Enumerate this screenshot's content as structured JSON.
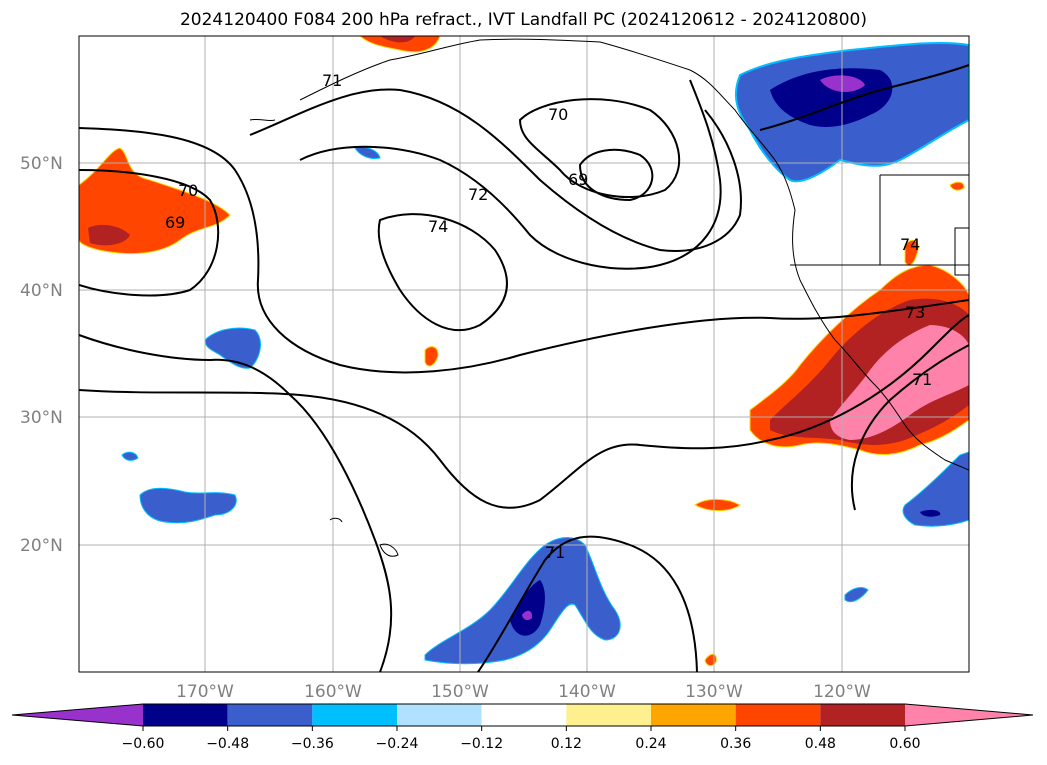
{
  "title": "2024120400 F084 200 hPa refract., IVT Landfall PC (2024120612 - 2024120800)",
  "map": {
    "lat_labels": [
      "50°N",
      "40°N",
      "30°N",
      "20°N"
    ],
    "lon_labels": [
      "170°W",
      "160°W",
      "150°W",
      "140°W",
      "130°W",
      "120°W"
    ]
  },
  "contour_labels": [
    "71",
    "70",
    "69",
    "72",
    "74",
    "70",
    "69",
    "74",
    "73",
    "71",
    "71"
  ],
  "colorbar": {
    "ticks": [
      "−0.60",
      "−0.48",
      "−0.36",
      "−0.24",
      "−0.12",
      "0.12",
      "0.24",
      "0.36",
      "0.48",
      "0.60"
    ],
    "colors": [
      "#9932cc",
      "#00008b",
      "#3a5fcd",
      "#00bfff",
      "#b0e2ff",
      "#ffffff",
      "#fff08f",
      "#ffa500",
      "#ff4500",
      "#b22222",
      "#ff82ab"
    ]
  }
}
